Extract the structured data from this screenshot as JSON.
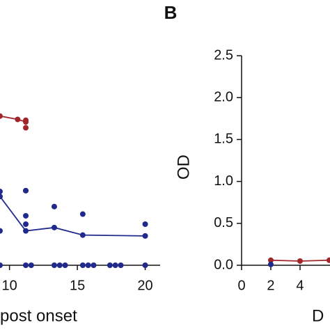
{
  "chart_data": [
    {
      "type": "line",
      "xlabel": "post onset",
      "xlim": [
        9.3,
        21.1
      ],
      "ylim": [
        0,
        2.5
      ],
      "xticks": [
        10,
        15,
        20
      ],
      "series": [
        {
          "color": "#a0262a",
          "line": true,
          "x": [
            9.3,
            10.6,
            11.2
          ],
          "values": [
            1.78,
            1.74,
            1.71
          ]
        },
        {
          "color": "#1f2a8c",
          "line": true,
          "x": [
            9.3,
            11.2,
            13.3,
            15.4,
            20
          ],
          "values": [
            0.82,
            0.41,
            0.45,
            0.36,
            0.35
          ]
        },
        {
          "color": "#a0262a",
          "line": false,
          "x": [
            11.2,
            11.2,
            11.2
          ],
          "values": [
            1.73,
            1.64,
            0.89
          ]
        },
        {
          "color": "#1f2a8c",
          "line": false,
          "x": [
            9.3,
            9.3,
            11.2,
            11.2,
            11.2,
            13.3,
            15.4,
            20,
            9.3,
            11.2,
            11.6,
            13.3,
            13.7,
            14.1,
            15.4,
            15.8,
            16.2,
            17.4,
            17.8,
            18.2,
            20
          ],
          "values": [
            0.88,
            0.41,
            0.89,
            0.59,
            0.49,
            0.7,
            0.61,
            0.49,
            0,
            0,
            0,
            0,
            0,
            0,
            0,
            0,
            0,
            0,
            0,
            0,
            0
          ]
        }
      ]
    },
    {
      "type": "line",
      "panel_label": "B",
      "xlabel": "D",
      "ylabel": "OD",
      "xlim": [
        0,
        6.05
      ],
      "ylim": [
        0,
        2.5
      ],
      "xticks": [
        0,
        2,
        4
      ],
      "yticks": [
        {
          "value": 0,
          "label": "0.0"
        },
        {
          "value": 0.5,
          "label": "0.5"
        },
        {
          "value": 1,
          "label": "1.0"
        },
        {
          "value": 1.5,
          "label": "1.5"
        },
        {
          "value": 2,
          "label": "2.0"
        },
        {
          "value": 2.5,
          "label": "2.5"
        }
      ],
      "series": [
        {
          "color": "#a0262a",
          "line": true,
          "x": [
            2,
            4,
            6
          ],
          "values": [
            0.06,
            0.05,
            0.06
          ]
        },
        {
          "color": "#1f2a8c",
          "line": false,
          "x": [
            2
          ],
          "values": [
            0.01
          ]
        }
      ]
    }
  ]
}
